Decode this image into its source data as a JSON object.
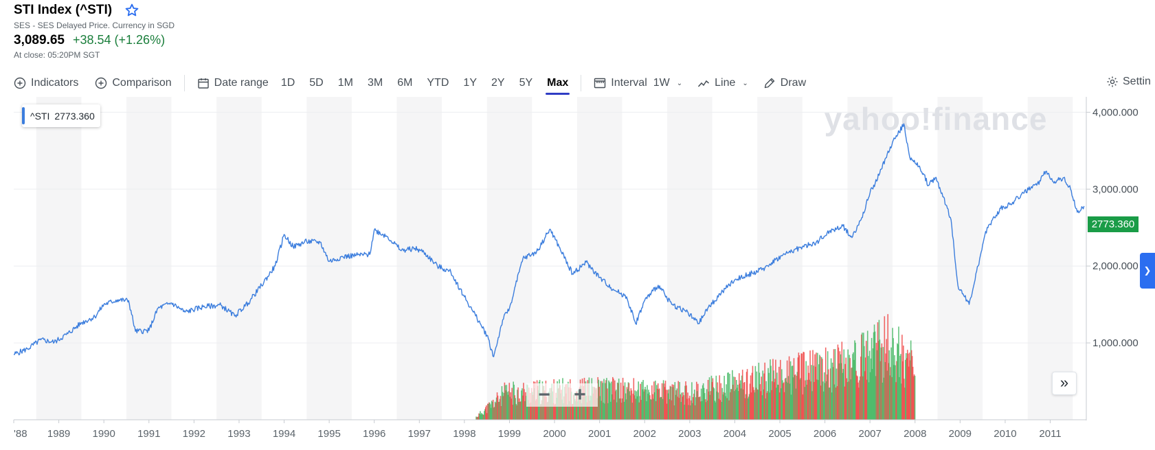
{
  "quote": {
    "title": "STI Index (^STI)",
    "subtitle": "SES - SES Delayed Price. Currency in SGD",
    "price": "3,089.65",
    "change": "+38.54 (+1.26%)",
    "close_time": "At close: 05:20PM SGT"
  },
  "toolbar": {
    "indicators": "Indicators",
    "comparison": "Comparison",
    "date_range": "Date range",
    "ranges": [
      "1D",
      "5D",
      "1M",
      "3M",
      "6M",
      "YTD",
      "1Y",
      "2Y",
      "5Y",
      "Max"
    ],
    "active_range": "Max",
    "interval_label": "Interval",
    "interval_value": "1W",
    "chart_type": "Line",
    "draw": "Draw",
    "settings": "Settin"
  },
  "legend": {
    "symbol": "^STI",
    "value": "2773.360"
  },
  "last_price_tag": "2773.360",
  "watermark": "yahoo!finance",
  "colors": {
    "line": "#3b7ddd",
    "up_volume": "#3fb55e",
    "down_volume": "#ef4040",
    "price_tag": "#1a9c47",
    "accent": "#2f3cc4"
  },
  "chart_data": {
    "type": "line",
    "series": [
      {
        "values": [
          [
            1988.0,
            850
          ],
          [
            1988.3,
            920
          ],
          [
            1988.6,
            1040
          ],
          [
            1988.9,
            1010
          ],
          [
            1989.2,
            1120
          ],
          [
            1989.5,
            1260
          ],
          [
            1989.8,
            1340
          ],
          [
            1990.0,
            1500
          ],
          [
            1990.3,
            1560
          ],
          [
            1990.55,
            1550
          ],
          [
            1990.7,
            1150
          ],
          [
            1991.0,
            1160
          ],
          [
            1991.2,
            1450
          ],
          [
            1991.5,
            1520
          ],
          [
            1991.8,
            1400
          ],
          [
            1992.2,
            1470
          ],
          [
            1992.6,
            1490
          ],
          [
            1992.9,
            1350
          ],
          [
            1993.2,
            1520
          ],
          [
            1993.5,
            1750
          ],
          [
            1993.8,
            2000
          ],
          [
            1994.0,
            2410
          ],
          [
            1994.2,
            2250
          ],
          [
            1994.5,
            2320
          ],
          [
            1994.8,
            2310
          ],
          [
            1995.0,
            2060
          ],
          [
            1995.3,
            2120
          ],
          [
            1995.6,
            2140
          ],
          [
            1995.9,
            2150
          ],
          [
            1996.0,
            2470
          ],
          [
            1996.3,
            2380
          ],
          [
            1996.6,
            2200
          ],
          [
            1996.9,
            2230
          ],
          [
            1997.1,
            2180
          ],
          [
            1997.4,
            2000
          ],
          [
            1997.7,
            1920
          ],
          [
            1998.0,
            1600
          ],
          [
            1998.2,
            1400
          ],
          [
            1998.5,
            1100
          ],
          [
            1998.65,
            820
          ],
          [
            1998.85,
            1300
          ],
          [
            1999.0,
            1450
          ],
          [
            1999.3,
            2100
          ],
          [
            1999.6,
            2180
          ],
          [
            1999.9,
            2480
          ],
          [
            2000.1,
            2250
          ],
          [
            2000.4,
            1900
          ],
          [
            2000.7,
            2050
          ],
          [
            2001.0,
            1850
          ],
          [
            2001.3,
            1700
          ],
          [
            2001.6,
            1600
          ],
          [
            2001.8,
            1250
          ],
          [
            2002.0,
            1550
          ],
          [
            2002.3,
            1750
          ],
          [
            2002.6,
            1500
          ],
          [
            2002.9,
            1420
          ],
          [
            2003.2,
            1250
          ],
          [
            2003.4,
            1450
          ],
          [
            2003.7,
            1650
          ],
          [
            2004.0,
            1820
          ],
          [
            2004.3,
            1890
          ],
          [
            2004.6,
            1950
          ],
          [
            2004.9,
            2080
          ],
          [
            2005.2,
            2180
          ],
          [
            2005.5,
            2250
          ],
          [
            2005.8,
            2300
          ],
          [
            2006.1,
            2450
          ],
          [
            2006.4,
            2520
          ],
          [
            2006.6,
            2370
          ],
          [
            2006.8,
            2600
          ],
          [
            2007.0,
            2950
          ],
          [
            2007.2,
            3180
          ],
          [
            2007.45,
            3550
          ],
          [
            2007.75,
            3850
          ],
          [
            2007.9,
            3380
          ],
          [
            2008.1,
            3300
          ],
          [
            2008.3,
            3050
          ],
          [
            2008.45,
            3150
          ],
          [
            2008.6,
            2950
          ],
          [
            2008.8,
            2600
          ],
          [
            2008.95,
            1750
          ],
          [
            2009.1,
            1600
          ],
          [
            2009.2,
            1500
          ],
          [
            2009.4,
            2000
          ],
          [
            2009.6,
            2500
          ],
          [
            2009.9,
            2750
          ],
          [
            2010.1,
            2800
          ],
          [
            2010.4,
            2950
          ],
          [
            2010.7,
            3050
          ],
          [
            2010.9,
            3230
          ],
          [
            2011.1,
            3100
          ],
          [
            2011.3,
            3150
          ],
          [
            2011.45,
            3000
          ],
          [
            2011.6,
            2700
          ],
          [
            2011.75,
            2780
          ]
        ]
      }
    ],
    "x_ticks": [
      "'88",
      "1989",
      "1990",
      "1991",
      "1992",
      "1993",
      "1994",
      "1995",
      "1996",
      "1997",
      "1998",
      "1999",
      "2000",
      "2001",
      "2002",
      "2003",
      "2004",
      "2005",
      "2006",
      "2007",
      "2008",
      "2009",
      "2010",
      "2011"
    ],
    "y_ticks": [
      "1,000.000",
      "2,000.000",
      "3,000.000",
      "4,000.000"
    ],
    "y_tick_values": [
      1000,
      2000,
      3000,
      4000
    ],
    "xlim": [
      1988.0,
      2011.8
    ],
    "ylim": [
      0,
      4200
    ],
    "volume": {
      "start": 1998.25,
      "end": 2008.0,
      "profile": [
        [
          1998.25,
          0.03
        ],
        [
          1998.9,
          0.28
        ],
        [
          2001.0,
          0.32
        ],
        [
          2003.0,
          0.28
        ],
        [
          2005.0,
          0.46
        ],
        [
          2006.5,
          0.58
        ],
        [
          2007.4,
          0.78
        ],
        [
          2008.0,
          0.55
        ]
      ]
    }
  }
}
